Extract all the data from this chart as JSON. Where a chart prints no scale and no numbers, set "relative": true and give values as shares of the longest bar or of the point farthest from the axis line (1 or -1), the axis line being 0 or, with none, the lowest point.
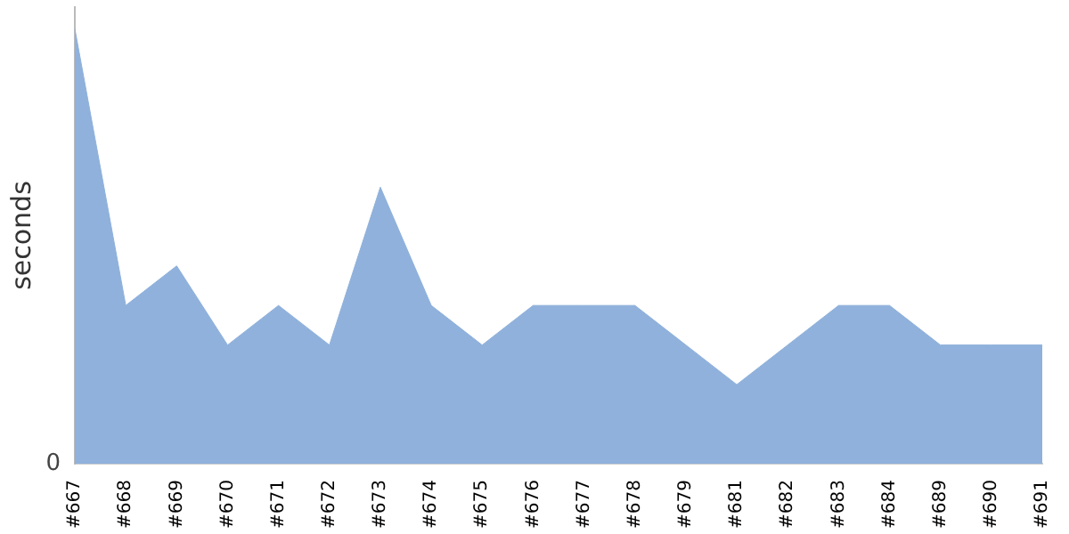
{
  "chart_data": {
    "type": "area",
    "ylabel": "seconds",
    "relative": true,
    "annotations": [
      "0"
    ],
    "categories": [
      "#667",
      "#668",
      "#669",
      "#670",
      "#671",
      "#672",
      "#673",
      "#674",
      "#675",
      "#676",
      "#677",
      "#678",
      "#679",
      "#681",
      "#682",
      "#683",
      "#684",
      "#689",
      "#690",
      "#691"
    ],
    "series": [
      {
        "color": "#8fb1db",
        "values": [
          1,
          0.364,
          0.455,
          0.273,
          0.364,
          0.273,
          0.636,
          0.364,
          0.273,
          0.364,
          0.364,
          0.364,
          0.273,
          0.182,
          0.273,
          0.364,
          0.364,
          0.273,
          0.273,
          0.273
        ]
      }
    ],
    "grid": false,
    "legend": false,
    "marker": "none"
  }
}
